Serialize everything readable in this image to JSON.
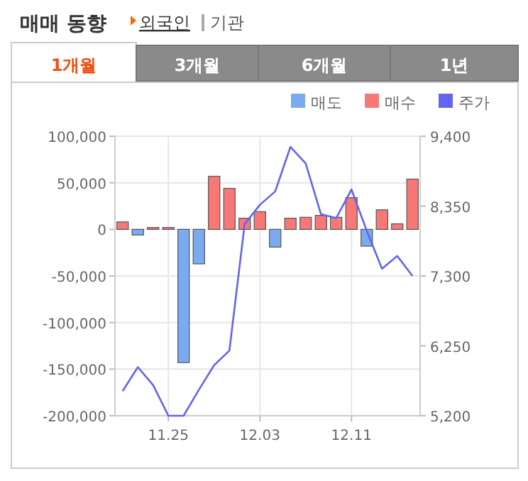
{
  "chart_data": {
    "type": "bar",
    "title": "매매 동향",
    "annotations": [
      "외국인",
      "기관",
      "1개월",
      "3개월",
      "6개월",
      "1년"
    ],
    "categories": [
      null,
      null,
      null,
      "11.25",
      null,
      null,
      null,
      null,
      null,
      "12.03",
      null,
      null,
      null,
      null,
      null,
      "12.11",
      null,
      null,
      null,
      null
    ],
    "series": [
      {
        "name": "매도",
        "color": "#7aaaf0",
        "values": [
          0,
          -6000,
          0,
          0,
          -143000,
          -37000,
          0,
          0,
          0,
          0,
          -19000,
          0,
          0,
          0,
          0,
          0,
          -18000,
          0,
          0,
          0
        ]
      },
      {
        "name": "매수",
        "color": "#f87878",
        "values": [
          8000,
          0,
          2000,
          2000,
          0,
          0,
          57000,
          44000,
          12000,
          19000,
          0,
          12000,
          13000,
          15000,
          13000,
          34000,
          0,
          21000,
          6000,
          54000
        ]
      },
      {
        "name": "주가",
        "type": "line",
        "axis": "y2",
        "color": "#6464f0",
        "values": [
          5570,
          5930,
          5660,
          5200,
          5200,
          5590,
          5960,
          6180,
          8080,
          8370,
          8570,
          9240,
          8990,
          8230,
          8170,
          8600,
          7980,
          7410,
          7600,
          7300
        ]
      }
    ],
    "ylim": [
      -200000,
      100000
    ],
    "yticks": [
      {
        "value": -200000,
        "label": "-200,000"
      },
      {
        "value": -150000,
        "label": "-150,000"
      },
      {
        "value": -100000,
        "label": "-100,000"
      },
      {
        "value": -50000,
        "label": "-50,000"
      },
      0,
      {
        "value": 50000,
        "label": "50,000"
      },
      {
        "value": 100000,
        "label": "100,000"
      }
    ],
    "y2lim": [
      5200,
      9400
    ],
    "y2ticks": [
      {
        "value": 5200,
        "label": "5,200"
      },
      {
        "value": 6250,
        "label": "6,250"
      },
      {
        "value": 7300,
        "label": "7,300"
      },
      {
        "value": 8350,
        "label": "8,350"
      },
      {
        "value": 9400,
        "label": "9,400"
      }
    ],
    "grid": true,
    "legend": "top right",
    "marker": "none"
  }
}
